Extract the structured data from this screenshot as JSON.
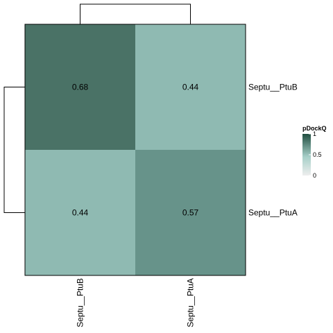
{
  "chart_data": {
    "type": "heatmap",
    "rows": [
      "Septu__PtuB",
      "Septu__PtuA"
    ],
    "cols": [
      "Septu__PtuB",
      "PtuA"
    ],
    "values": [
      [
        0.68,
        0.44
      ],
      [
        0.44,
        0.57
      ]
    ],
    "value_labels": [
      [
        "0.68",
        "0.44"
      ],
      [
        "0.44",
        "0.57"
      ]
    ],
    "col_label_prefix": "Septu__",
    "row_dendrogram": true,
    "col_dendrogram": true,
    "colorbar": {
      "title": "pDockQ",
      "range": [
        0,
        1
      ],
      "ticks": [
        1,
        0.5,
        0
      ],
      "tick_labels": [
        "1",
        "0.5",
        "0"
      ],
      "color_low": "#eeeeee",
      "color_high": "#1f4d3f"
    },
    "cell_colors": [
      [
        "#4a7266",
        "#8fbab2"
      ],
      [
        "#8fbab2",
        "#67938a"
      ]
    ],
    "dendrogram_color": "#000000",
    "border_color": "#000000"
  }
}
